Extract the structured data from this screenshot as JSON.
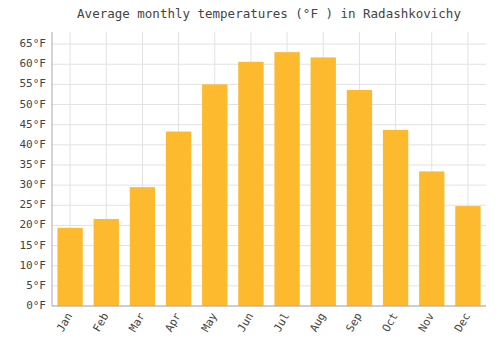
{
  "chart_data": {
    "type": "bar",
    "title": "Average monthly temperatures (°F ) in Radashkovichy",
    "categories": [
      "Jan",
      "Feb",
      "Mar",
      "Apr",
      "May",
      "Jun",
      "Jul",
      "Aug",
      "Sep",
      "Oct",
      "Nov",
      "Dec"
    ],
    "values": [
      19.4,
      21.6,
      29.5,
      43.3,
      55.0,
      60.6,
      63.0,
      61.7,
      53.6,
      43.7,
      33.4,
      24.8
    ],
    "color": "#FDBA2E",
    "ylim": [
      0,
      68
    ],
    "yticks": [
      {
        "value": 0,
        "label": "0°F"
      },
      {
        "value": 5,
        "label": "5°F"
      },
      {
        "value": 10,
        "label": "10°F"
      },
      {
        "value": 15,
        "label": "15°F"
      },
      {
        "value": 20,
        "label": "20°F"
      },
      {
        "value": 25,
        "label": "25°F"
      },
      {
        "value": 30,
        "label": "30°F"
      },
      {
        "value": 35,
        "label": "35°F"
      },
      {
        "value": 40,
        "label": "40°F"
      },
      {
        "value": 45,
        "label": "45°F"
      },
      {
        "value": 50,
        "label": "50°F"
      },
      {
        "value": 55,
        "label": "55°F"
      },
      {
        "value": 60,
        "label": "60°F"
      },
      {
        "value": 65,
        "label": "65°F"
      }
    ],
    "grid": true
  }
}
